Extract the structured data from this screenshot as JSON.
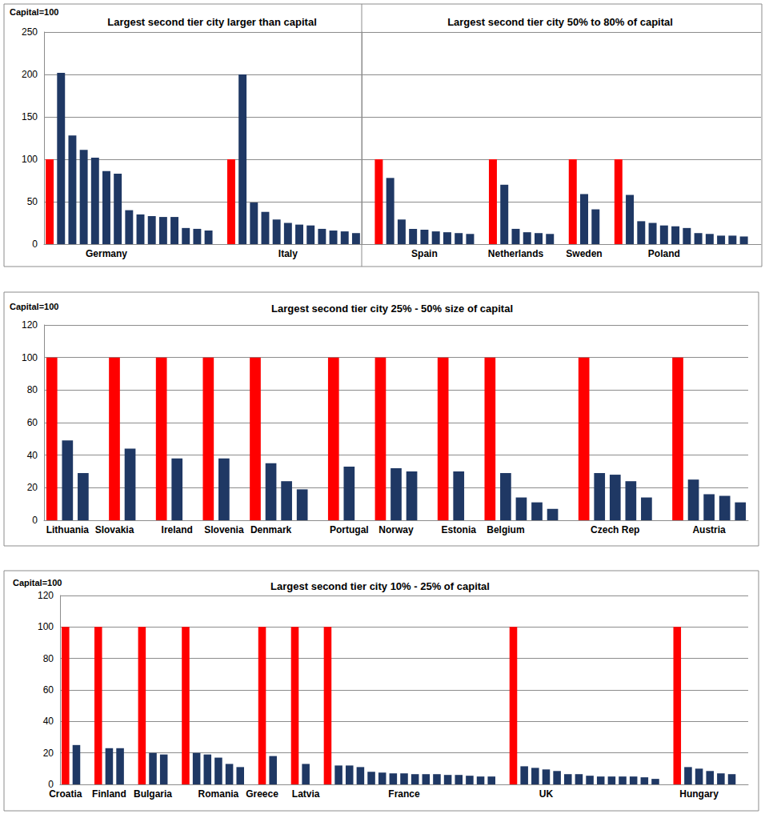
{
  "chart_data": [
    {
      "type": "bar",
      "title": "Largest second tier city larger than capital",
      "annotations": [
        "Capital=100"
      ],
      "categories": [
        null,
        null,
        null,
        null,
        null,
        "Germany",
        null,
        null,
        null,
        null,
        null,
        null,
        null,
        null,
        null,
        null,
        null,
        null,
        null,
        null,
        null,
        "Italy",
        null,
        null,
        null,
        null,
        null,
        null
      ],
      "values": [
        100,
        202,
        128,
        111,
        102,
        86,
        83,
        40,
        35,
        33,
        32,
        32,
        19,
        18,
        16,
        null,
        100,
        200,
        49,
        38,
        29,
        25,
        23,
        22,
        18,
        16,
        15,
        13
      ],
      "colors": [
        "#ff0000",
        "#1f3864",
        "#1f3864",
        "#1f3864",
        "#1f3864",
        "#1f3864",
        "#1f3864",
        "#1f3864",
        "#1f3864",
        "#1f3864",
        "#1f3864",
        "#1f3864",
        "#1f3864",
        "#1f3864",
        "#1f3864",
        null,
        "#ff0000",
        "#1f3864",
        "#1f3864",
        "#1f3864",
        "#1f3864",
        "#1f3864",
        "#1f3864",
        "#1f3864",
        "#1f3864",
        "#1f3864",
        "#1f3864",
        "#1f3864"
      ],
      "ylim": [
        0,
        250
      ],
      "yticks": [
        0,
        50,
        100,
        150,
        200,
        250
      ],
      "grid": true
    },
    {
      "type": "bar",
      "title": "Largest second tier city 50% to 80% of capital",
      "categories": [
        null,
        null,
        null,
        null,
        null,
        "Spain",
        null,
        null,
        null,
        null,
        null,
        null,
        null,
        "Netherlands",
        null,
        null,
        null,
        null,
        null,
        "Sweden",
        null,
        null,
        null,
        null,
        null,
        null,
        "Poland",
        null,
        null,
        null,
        null,
        null,
        null,
        null,
        null
      ],
      "values": [
        null,
        100,
        78,
        29,
        18,
        17,
        15,
        14,
        13,
        12,
        null,
        100,
        70,
        18,
        14,
        13,
        12,
        null,
        100,
        59,
        41,
        null,
        100,
        58,
        27,
        25,
        22,
        21,
        19,
        13,
        12,
        10,
        10,
        9,
        null
      ],
      "colors": [
        null,
        "#ff0000",
        "#1f3864",
        "#1f3864",
        "#1f3864",
        "#1f3864",
        "#1f3864",
        "#1f3864",
        "#1f3864",
        "#1f3864",
        null,
        "#ff0000",
        "#1f3864",
        "#1f3864",
        "#1f3864",
        "#1f3864",
        "#1f3864",
        null,
        "#ff0000",
        "#1f3864",
        "#1f3864",
        null,
        "#ff0000",
        "#1f3864",
        "#1f3864",
        "#1f3864",
        "#1f3864",
        "#1f3864",
        "#1f3864",
        "#1f3864",
        "#1f3864",
        "#1f3864",
        "#1f3864",
        "#1f3864",
        null
      ],
      "ylim": [
        0,
        250
      ],
      "yticks": [
        0,
        50,
        100,
        150,
        200,
        250
      ],
      "grid": true,
      "tick_labels": "x"
    },
    {
      "type": "bar",
      "title": "Largest second tier city 25% - 50% size of capital",
      "annotations": [
        "Capital=100"
      ],
      "categories": [
        null,
        "Lithuania",
        null,
        null,
        "Slovakia",
        null,
        null,
        null,
        "Ireland",
        null,
        null,
        "Slovenia",
        null,
        null,
        "Denmark",
        null,
        null,
        null,
        null,
        "Portugal",
        null,
        null,
        "Norway",
        null,
        null,
        null,
        "Estonia",
        null,
        null,
        "Belgium",
        null,
        null,
        null,
        null,
        null,
        null,
        "Czech Rep",
        null,
        null,
        null,
        null,
        null,
        "Austria",
        null,
        null
      ],
      "values": [
        100,
        49,
        29,
        null,
        100,
        44,
        null,
        100,
        38,
        null,
        100,
        38,
        null,
        100,
        35,
        24,
        19,
        null,
        100,
        33,
        null,
        100,
        32,
        30,
        null,
        100,
        30,
        null,
        100,
        29,
        14,
        11,
        7,
        null,
        100,
        29,
        28,
        24,
        14,
        null,
        100,
        25,
        16,
        15,
        11
      ],
      "colors": [
        "#ff0000",
        "#1f3864",
        "#1f3864",
        null,
        "#ff0000",
        "#1f3864",
        null,
        "#ff0000",
        "#1f3864",
        null,
        "#ff0000",
        "#1f3864",
        null,
        "#ff0000",
        "#1f3864",
        "#1f3864",
        "#1f3864",
        null,
        "#ff0000",
        "#1f3864",
        null,
        "#ff0000",
        "#1f3864",
        "#1f3864",
        null,
        "#ff0000",
        "#1f3864",
        null,
        "#ff0000",
        "#1f3864",
        "#1f3864",
        "#1f3864",
        "#1f3864",
        null,
        "#ff0000",
        "#1f3864",
        "#1f3864",
        "#1f3864",
        "#1f3864",
        null,
        "#ff0000",
        "#1f3864",
        "#1f3864",
        "#1f3864",
        "#1f3864"
      ],
      "ylim": [
        0,
        120
      ],
      "yticks": [
        0,
        20,
        40,
        60,
        80,
        100,
        120
      ],
      "grid": true
    },
    {
      "type": "bar",
      "title": "Largest second tier city 10% - 25% of capital",
      "annotations": [
        "Capital=100"
      ],
      "categories": [
        "Croatia",
        null,
        null,
        null,
        "Finland",
        null,
        null,
        null,
        "Bulgaria",
        null,
        null,
        null,
        null,
        null,
        "Romania",
        null,
        null,
        null,
        "Greece",
        null,
        null,
        null,
        "Latvia",
        null,
        null,
        null,
        null,
        null,
        null,
        null,
        null,
        "France",
        null,
        null,
        null,
        null,
        null,
        null,
        null,
        null,
        null,
        null,
        null,
        null,
        "UK",
        null,
        null,
        null,
        null,
        null,
        null,
        null,
        null,
        null,
        null,
        null,
        null,
        null,
        "Hungary",
        null,
        null,
        null,
        null
      ],
      "values": [
        100,
        25,
        null,
        100,
        23,
        23,
        null,
        100,
        20,
        19,
        null,
        100,
        20,
        19,
        17,
        13,
        11,
        null,
        100,
        18,
        null,
        100,
        13,
        null,
        100,
        12,
        12,
        11,
        8,
        7.5,
        7,
        7,
        6.5,
        6.5,
        6.5,
        6,
        6,
        5.5,
        5,
        5,
        null,
        100,
        11.5,
        10.5,
        9.5,
        8.5,
        6.5,
        6.5,
        5.5,
        5,
        5,
        5,
        5,
        4.5,
        3.5,
        null,
        100,
        11,
        10,
        8.5,
        7,
        6.5,
        null
      ],
      "colors": [
        "#ff0000",
        "#1f3864",
        null,
        "#ff0000",
        "#1f3864",
        "#1f3864",
        null,
        "#ff0000",
        "#1f3864",
        "#1f3864",
        null,
        "#ff0000",
        "#1f3864",
        "#1f3864",
        "#1f3864",
        "#1f3864",
        "#1f3864",
        null,
        "#ff0000",
        "#1f3864",
        null,
        "#ff0000",
        "#1f3864",
        null,
        "#ff0000",
        "#1f3864",
        "#1f3864",
        "#1f3864",
        "#1f3864",
        "#1f3864",
        "#1f3864",
        "#1f3864",
        "#1f3864",
        "#1f3864",
        "#1f3864",
        "#1f3864",
        "#1f3864",
        "#1f3864",
        "#1f3864",
        "#1f3864",
        null,
        "#ff0000",
        "#1f3864",
        "#1f3864",
        "#1f3864",
        "#1f3864",
        "#1f3864",
        "#1f3864",
        "#1f3864",
        "#1f3864",
        "#1f3864",
        "#1f3864",
        "#1f3864",
        "#1f3864",
        "#1f3864",
        null,
        "#ff0000",
        "#1f3864",
        "#1f3864",
        "#1f3864",
        "#1f3864",
        "#1f3864",
        null
      ],
      "ylim": [
        0,
        120
      ],
      "yticks": [
        0,
        20,
        40,
        60,
        80,
        100,
        120
      ],
      "grid": true
    }
  ]
}
